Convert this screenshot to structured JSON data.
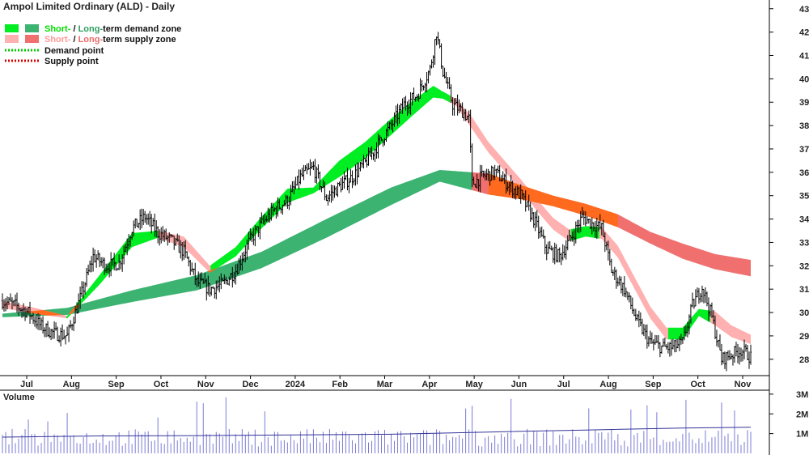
{
  "chart_data": [
    {
      "type": "line",
      "title": "Ampol Limited Ordinary (ALD) - Daily",
      "chart_style": "candlestick with moving-average bands",
      "ylim": [
        27.3,
        43.2
      ],
      "y_ticks": [
        28,
        29,
        30,
        31,
        32,
        33,
        34,
        35,
        36,
        37,
        38,
        39,
        40,
        41,
        42,
        43
      ],
      "x_labels": [
        "Jul",
        "Aug",
        "Sep",
        "Oct",
        "Nov",
        "Dec",
        "2024",
        "Feb",
        "Mar",
        "Apr",
        "May",
        "Jun",
        "Jul",
        "Aug",
        "Sep",
        "Oct",
        "Nov"
      ],
      "legend_placement": "top-left",
      "legend": [
        {
          "text_a": "Short-",
          "text_sep": " / ",
          "text_b": "Long-",
          "text_c": "term demand zone",
          "swatch_colors": [
            "#00ee22",
            "#3cb371"
          ]
        },
        {
          "text_a": "Short-",
          "text_sep": " / ",
          "text_b": "Long-",
          "text_c": "term supply zone",
          "swatch_colors": [
            "#ffb0b0",
            "#f07070"
          ]
        },
        {
          "text": "Demand point",
          "color": "#00cc00",
          "style": "dotted"
        },
        {
          "text": "Supply point",
          "color": "#dd0000",
          "style": "dotted"
        }
      ],
      "colors": {
        "short_demand": "#00ee22",
        "long_demand": "#3cb371",
        "short_supply": "#ffb0b0",
        "long_supply": "#f07070",
        "cross_zone": "#ff6a1f",
        "candle": "#000000"
      },
      "price_path": [
        [
          0,
          30.5
        ],
        [
          8,
          30.3
        ],
        [
          16,
          30.0
        ],
        [
          24,
          29.4
        ],
        [
          32,
          29.1
        ],
        [
          40,
          29.0
        ],
        [
          48,
          30.6
        ],
        [
          56,
          32.4
        ],
        [
          64,
          32.0
        ],
        [
          72,
          32.1
        ],
        [
          80,
          33.6
        ],
        [
          88,
          34.1
        ],
        [
          96,
          33.4
        ],
        [
          104,
          33.1
        ],
        [
          112,
          32.6
        ],
        [
          120,
          31.3
        ],
        [
          128,
          31.0
        ],
        [
          136,
          31.2
        ],
        [
          144,
          31.8
        ],
        [
          152,
          33.0
        ],
        [
          160,
          33.8
        ],
        [
          168,
          34.4
        ],
        [
          176,
          34.8
        ],
        [
          184,
          35.8
        ],
        [
          192,
          36.2
        ],
        [
          200,
          34.9
        ],
        [
          208,
          35.4
        ],
        [
          216,
          35.8
        ],
        [
          224,
          36.4
        ],
        [
          232,
          37.2
        ],
        [
          240,
          38.0
        ],
        [
          248,
          38.9
        ],
        [
          256,
          39.3
        ],
        [
          264,
          40.4
        ],
        [
          268,
          42.0
        ],
        [
          272,
          40.3
        ],
        [
          278,
          38.9
        ],
        [
          284,
          38.6
        ],
        [
          288,
          38.3
        ],
        [
          290,
          35.5
        ],
        [
          296,
          35.8
        ],
        [
          304,
          36.0
        ],
        [
          312,
          35.5
        ],
        [
          320,
          35.0
        ],
        [
          328,
          34.0
        ],
        [
          336,
          32.7
        ],
        [
          344,
          32.4
        ],
        [
          352,
          33.3
        ],
        [
          358,
          34.1
        ],
        [
          364,
          33.8
        ],
        [
          370,
          33.6
        ],
        [
          376,
          31.8
        ],
        [
          384,
          31.0
        ],
        [
          392,
          29.6
        ],
        [
          400,
          28.7
        ],
        [
          408,
          28.5
        ],
        [
          414,
          28.5
        ],
        [
          420,
          28.7
        ],
        [
          426,
          30.3
        ],
        [
          432,
          31.1
        ],
        [
          438,
          29.8
        ],
        [
          444,
          28.0
        ],
        [
          450,
          28.2
        ],
        [
          456,
          28.4
        ],
        [
          462,
          28.1
        ]
      ],
      "bands": [
        {
          "name": "long-term zone",
          "lower": [
            [
              0,
              29.8
            ],
            [
              40,
              29.9
            ],
            [
              80,
              30.45
            ],
            [
              120,
              30.95
            ],
            [
              160,
              31.9
            ],
            [
              200,
              33.2
            ],
            [
              240,
              34.6
            ],
            [
              270,
              35.6
            ],
            [
              300,
              35.05
            ],
            [
              320,
              34.85
            ],
            [
              340,
              34.55
            ],
            [
              360,
              34.15
            ],
            [
              380,
              33.65
            ],
            [
              400,
              32.95
            ],
            [
              420,
              32.3
            ],
            [
              440,
              31.85
            ],
            [
              462,
              31.55
            ]
          ],
          "upper": [
            [
              0,
              29.95
            ],
            [
              40,
              30.2
            ],
            [
              80,
              30.95
            ],
            [
              120,
              31.6
            ],
            [
              160,
              32.6
            ],
            [
              200,
              34.0
            ],
            [
              240,
              35.35
            ],
            [
              270,
              36.1
            ],
            [
              300,
              35.95
            ],
            [
              320,
              35.45
            ],
            [
              340,
              35.0
            ],
            [
              360,
              34.65
            ],
            [
              380,
              34.2
            ],
            [
              400,
              33.45
            ],
            [
              420,
              32.95
            ],
            [
              440,
              32.5
            ],
            [
              462,
              32.25
            ]
          ]
        },
        {
          "name": "short-term zone",
          "lower": [
            [
              0,
              30.2
            ],
            [
              20,
              29.95
            ],
            [
              40,
              29.75
            ],
            [
              60,
              31.2
            ],
            [
              80,
              32.8
            ],
            [
              96,
              33.2
            ],
            [
              112,
              32.8
            ],
            [
              128,
              31.7
            ],
            [
              144,
              32.4
            ],
            [
              160,
              33.6
            ],
            [
              176,
              34.7
            ],
            [
              192,
              35.1
            ],
            [
              208,
              35.8
            ],
            [
              224,
              36.6
            ],
            [
              240,
              37.6
            ],
            [
              256,
              38.6
            ],
            [
              266,
              39.2
            ],
            [
              272,
              39.15
            ],
            [
              280,
              38.85
            ],
            [
              290,
              37.85
            ],
            [
              300,
              36.85
            ],
            [
              310,
              36.05
            ],
            [
              320,
              35.25
            ],
            [
              330,
              34.35
            ],
            [
              340,
              33.55
            ],
            [
              350,
              33.05
            ],
            [
              360,
              33.25
            ],
            [
              370,
              33.15
            ],
            [
              380,
              32.35
            ],
            [
              390,
              31.05
            ],
            [
              400,
              29.75
            ],
            [
              410,
              28.85
            ],
            [
              420,
              28.85
            ],
            [
              430,
              29.85
            ],
            [
              440,
              29.45
            ],
            [
              450,
              28.95
            ],
            [
              462,
              28.65
            ]
          ],
          "upper": [
            [
              0,
              30.5
            ],
            [
              20,
              30.2
            ],
            [
              40,
              29.85
            ],
            [
              60,
              31.6
            ],
            [
              80,
              33.4
            ],
            [
              96,
              33.5
            ],
            [
              112,
              33.25
            ],
            [
              128,
              32.0
            ],
            [
              144,
              32.8
            ],
            [
              160,
              34.1
            ],
            [
              176,
              35.3
            ],
            [
              192,
              35.35
            ],
            [
              208,
              36.5
            ],
            [
              224,
              37.3
            ],
            [
              240,
              38.3
            ],
            [
              256,
              39.2
            ],
            [
              266,
              39.7
            ],
            [
              272,
              39.45
            ],
            [
              280,
              39.15
            ],
            [
              290,
              38.35
            ],
            [
              300,
              37.3
            ],
            [
              310,
              36.5
            ],
            [
              320,
              35.7
            ],
            [
              330,
              34.85
            ],
            [
              340,
              34.05
            ],
            [
              350,
              33.55
            ],
            [
              360,
              33.7
            ],
            [
              370,
              33.65
            ],
            [
              380,
              32.85
            ],
            [
              390,
              31.55
            ],
            [
              400,
              30.25
            ],
            [
              410,
              29.35
            ],
            [
              420,
              29.35
            ],
            [
              430,
              30.15
            ],
            [
              440,
              30.05
            ],
            [
              450,
              29.45
            ],
            [
              462,
              29.05
            ]
          ]
        }
      ]
    },
    {
      "type": "bar",
      "title": "Volume",
      "ylim": [
        0,
        3.2
      ],
      "y_ticks": [
        "1M",
        "2M",
        "3M"
      ],
      "y_tick_values": [
        1,
        2,
        3
      ],
      "bar_color": "#7b7bd6",
      "average_line": [
        [
          0,
          0.82
        ],
        [
          60,
          0.88
        ],
        [
          120,
          0.9
        ],
        [
          180,
          0.93
        ],
        [
          240,
          0.97
        ],
        [
          300,
          1.08
        ],
        [
          360,
          1.18
        ],
        [
          420,
          1.28
        ],
        [
          462,
          1.32
        ]
      ]
    }
  ]
}
